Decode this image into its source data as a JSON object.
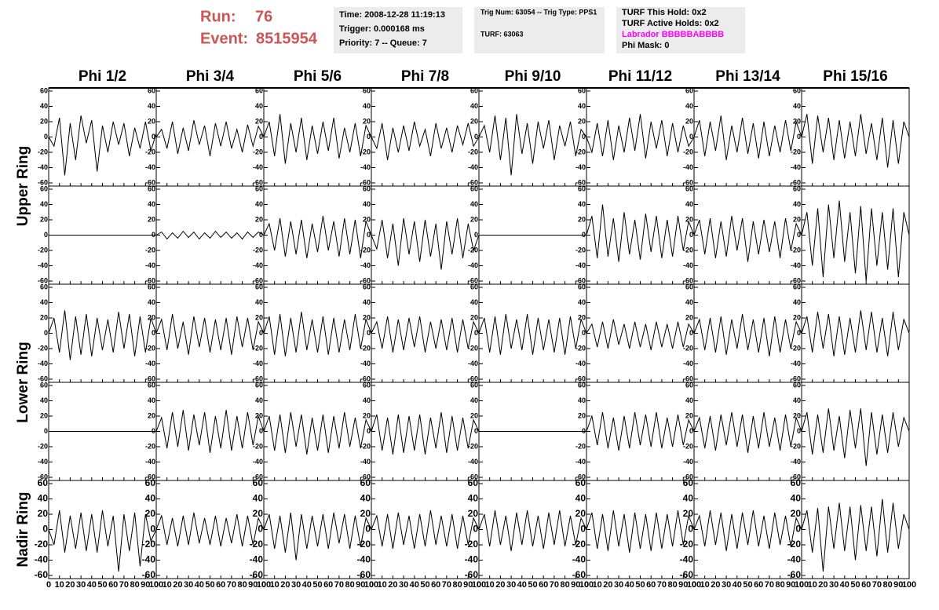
{
  "header": {
    "run_label": "Run:",
    "run": "76",
    "event_label": "Event:",
    "event": "8515954",
    "time": "Time: 2008-12-28 11:19:13",
    "trigger": "Trigger: 0.000168 ms",
    "priority": "Priority: 7 -- Queue: 7",
    "trig": "Trig Num: 63054 -- Trig Type: PPS1",
    "turf": "TURF: 63063",
    "turf_hold": "TURF This Hold: 0x2",
    "turf_active": "TURF Active Holds: 0x2",
    "labrador": "Labrador BBBBBABBBB",
    "phi_mask": "Phi Mask: 0"
  },
  "chart_data": {
    "type": "line",
    "columns": [
      "Phi 1/2",
      "Phi 3/4",
      "Phi 5/6",
      "Phi 7/8",
      "Phi 9/10",
      "Phi 11/12",
      "Phi 13/14",
      "Phi 15/16"
    ],
    "rows": [
      "Upper Ring",
      "Lower Ring",
      "Nadir Ring"
    ],
    "xlim": [
      0,
      100
    ],
    "xticks": [
      0,
      10,
      20,
      30,
      40,
      50,
      60,
      70,
      80,
      90,
      100
    ],
    "ylim": [
      -60,
      60
    ],
    "yticks": [
      60,
      40,
      20,
      0,
      -20,
      -40,
      -60
    ],
    "x": [
      0,
      5,
      10,
      15,
      20,
      25,
      30,
      35,
      40,
      45,
      50,
      55,
      60,
      65,
      70,
      75,
      80,
      85,
      90,
      95,
      100
    ],
    "color": "#000000",
    "series": [
      {
        "values": [
          0,
          -12,
          25,
          -50,
          18,
          -30,
          28,
          -8,
          22,
          -45,
          15,
          -20,
          20,
          -10,
          18,
          -25,
          12,
          -15,
          20,
          -18,
          5
        ]
      },
      {
        "values": [
          0,
          10,
          -15,
          20,
          -22,
          12,
          -18,
          22,
          -10,
          15,
          -25,
          18,
          -12,
          20,
          -15,
          10,
          -20,
          16,
          -12,
          14,
          0
        ]
      },
      {
        "values": [
          0,
          20,
          -25,
          30,
          -35,
          18,
          -20,
          25,
          -30,
          15,
          -22,
          20,
          -18,
          25,
          -28,
          12,
          -20,
          18,
          -25,
          15,
          0
        ]
      },
      {
        "values": [
          0,
          -15,
          18,
          -30,
          12,
          -20,
          15,
          -18,
          20,
          -12,
          10,
          -25,
          18,
          -15,
          12,
          -20,
          15,
          -10,
          18,
          -12,
          0
        ]
      },
      {
        "values": [
          0,
          15,
          -20,
          28,
          -30,
          25,
          -50,
          30,
          -22,
          18,
          -35,
          20,
          -15,
          22,
          -30,
          15,
          -12,
          20,
          -25,
          10,
          0
        ]
      },
      {
        "values": [
          0,
          -20,
          18,
          -25,
          22,
          -30,
          15,
          -20,
          25,
          -18,
          30,
          -28,
          20,
          -15,
          22,
          -25,
          18,
          -20,
          15,
          -12,
          0
        ]
      },
      {
        "values": [
          0,
          22,
          -25,
          20,
          -18,
          28,
          -30,
          15,
          -20,
          25,
          -22,
          18,
          -28,
          20,
          -25,
          15,
          -20,
          22,
          -18,
          20,
          0
        ]
      },
      {
        "values": [
          0,
          30,
          -35,
          28,
          -20,
          25,
          -30,
          22,
          -28,
          20,
          -25,
          30,
          -22,
          18,
          -30,
          25,
          -40,
          22,
          -35,
          20,
          0
        ]
      },
      {
        "values": [
          0,
          0,
          0,
          0,
          0,
          0,
          0,
          0,
          0,
          0,
          0,
          0,
          0,
          0,
          0,
          0,
          0,
          0,
          0,
          0,
          0
        ]
      },
      {
        "values": [
          0,
          4,
          -5,
          3,
          -4,
          5,
          -3,
          4,
          -5,
          3,
          -4,
          5,
          -3,
          4,
          -4,
          3,
          -5,
          4,
          -3,
          4,
          0
        ]
      },
      {
        "values": [
          0,
          15,
          -20,
          22,
          -28,
          18,
          -25,
          20,
          -30,
          15,
          -22,
          25,
          -20,
          18,
          -28,
          22,
          -25,
          20,
          -30,
          18,
          0
        ]
      },
      {
        "values": [
          0,
          -18,
          20,
          -30,
          15,
          -40,
          22,
          -25,
          18,
          -35,
          20,
          -28,
          15,
          -45,
          18,
          -25,
          22,
          -30,
          15,
          -20,
          0
        ]
      },
      {
        "values": [
          0,
          0,
          0,
          0,
          0,
          0,
          0,
          0,
          0,
          0,
          0,
          0,
          0,
          0,
          0,
          0,
          0,
          0,
          0,
          0,
          0
        ]
      },
      {
        "values": [
          0,
          25,
          -30,
          40,
          -28,
          22,
          -35,
          30,
          -25,
          20,
          -32,
          28,
          -22,
          25,
          -30,
          20,
          -28,
          25,
          -20,
          18,
          0
        ]
      },
      {
        "values": [
          0,
          20,
          -25,
          22,
          -30,
          18,
          -28,
          25,
          -20,
          22,
          -35,
          18,
          -25,
          20,
          -22,
          18,
          -30,
          22,
          -20,
          15,
          0
        ]
      },
      {
        "values": [
          0,
          30,
          -40,
          35,
          -55,
          40,
          -30,
          45,
          -35,
          30,
          -50,
          38,
          -60,
          35,
          -40,
          30,
          -45,
          35,
          -55,
          30,
          0
        ]
      },
      {
        "values": [
          0,
          20,
          -25,
          30,
          -35,
          22,
          -28,
          25,
          -30,
          20,
          -22,
          18,
          -25,
          28,
          -20,
          25,
          -30,
          22,
          -25,
          20,
          0
        ]
      },
      {
        "values": [
          0,
          18,
          -22,
          25,
          -20,
          15,
          -28,
          22,
          -18,
          20,
          -25,
          18,
          -22,
          20,
          -28,
          22,
          -18,
          20,
          -22,
          15,
          0
        ]
      },
      {
        "values": [
          0,
          22,
          -28,
          25,
          -30,
          20,
          -25,
          28,
          -22,
          18,
          -25,
          22,
          -28,
          20,
          -25,
          18,
          -22,
          25,
          -20,
          18,
          0
        ]
      },
      {
        "values": [
          0,
          15,
          -20,
          22,
          -25,
          18,
          -22,
          20,
          -18,
          22,
          -25,
          15,
          -20,
          18,
          -22,
          20,
          -25,
          18,
          -20,
          15,
          0
        ]
      },
      {
        "values": [
          0,
          20,
          -25,
          22,
          -28,
          25,
          -20,
          18,
          -22,
          25,
          -28,
          20,
          -22,
          18,
          -25,
          20,
          -28,
          22,
          -20,
          18,
          0
        ]
      },
      {
        "values": [
          0,
          12,
          -18,
          15,
          -20,
          18,
          -15,
          12,
          -20,
          15,
          -18,
          12,
          -22,
          15,
          -18,
          12,
          -20,
          15,
          -18,
          12,
          0
        ]
      },
      {
        "values": [
          0,
          18,
          -22,
          20,
          -25,
          22,
          -28,
          18,
          -20,
          25,
          -22,
          18,
          -25,
          20,
          -30,
          22,
          -25,
          18,
          -20,
          15,
          0
        ]
      },
      {
        "values": [
          0,
          22,
          -25,
          28,
          -20,
          25,
          -30,
          22,
          -28,
          20,
          -25,
          30,
          -22,
          28,
          -25,
          20,
          -30,
          28,
          -22,
          18,
          0
        ]
      },
      {
        "values": [
          0,
          0,
          0,
          0,
          0,
          0,
          0,
          0,
          0,
          0,
          0,
          0,
          0,
          0,
          0,
          0,
          0,
          0,
          0,
          0,
          0
        ]
      },
      {
        "values": [
          0,
          18,
          -22,
          25,
          -20,
          28,
          -25,
          22,
          -18,
          25,
          -28,
          20,
          -22,
          28,
          -25,
          20,
          -22,
          25,
          -18,
          20,
          0
        ]
      },
      {
        "values": [
          0,
          20,
          -25,
          22,
          -28,
          25,
          -20,
          22,
          -30,
          18,
          -25,
          22,
          -28,
          20,
          -22,
          25,
          -20,
          18,
          -22,
          15,
          0
        ]
      },
      {
        "values": [
          0,
          22,
          -25,
          18,
          -30,
          22,
          -28,
          20,
          -25,
          22,
          -30,
          18,
          -22,
          25,
          -28,
          20,
          -25,
          18,
          -22,
          15,
          0
        ]
      },
      {
        "values": [
          0,
          0,
          0,
          0,
          0,
          0,
          0,
          0,
          0,
          0,
          0,
          0,
          0,
          0,
          0,
          0,
          0,
          0,
          0,
          0,
          0
        ]
      },
      {
        "values": [
          0,
          20,
          -18,
          25,
          -22,
          18,
          -25,
          20,
          -22,
          25,
          -18,
          22,
          -20,
          25,
          -22,
          18,
          -20,
          22,
          -18,
          15,
          0
        ]
      },
      {
        "values": [
          0,
          18,
          -22,
          20,
          -25,
          22,
          -18,
          25,
          -20,
          22,
          -28,
          20,
          -22,
          25,
          -20,
          18,
          -25,
          22,
          -20,
          18,
          0
        ]
      },
      {
        "values": [
          0,
          25,
          -30,
          22,
          -28,
          30,
          -25,
          20,
          -35,
          28,
          -22,
          30,
          -45,
          25,
          -30,
          22,
          -28,
          25,
          -20,
          18,
          0
        ]
      },
      {
        "values": [
          0,
          -20,
          25,
          -30,
          18,
          -25,
          22,
          -28,
          20,
          -30,
          25,
          -22,
          18,
          -55,
          20,
          -28,
          22,
          -48,
          20,
          -15,
          0
        ]
      },
      {
        "values": [
          0,
          18,
          -20,
          15,
          -22,
          18,
          -20,
          22,
          -18,
          15,
          -20,
          18,
          -22,
          15,
          -18,
          20,
          -22,
          18,
          -20,
          15,
          0
        ]
      },
      {
        "values": [
          0,
          20,
          -25,
          18,
          -30,
          22,
          -40,
          20,
          -25,
          18,
          -22,
          20,
          -25,
          22,
          -18,
          20,
          -25,
          18,
          -22,
          15,
          0
        ]
      },
      {
        "values": [
          0,
          18,
          -22,
          20,
          -25,
          22,
          -20,
          18,
          -25,
          20,
          -22,
          25,
          -20,
          18,
          -22,
          20,
          -25,
          18,
          -20,
          15,
          0
        ]
      },
      {
        "values": [
          0,
          20,
          -22,
          25,
          -20,
          18,
          -28,
          22,
          -20,
          25,
          -22,
          18,
          -25,
          22,
          -20,
          25,
          -22,
          18,
          -20,
          15,
          0
        ]
      },
      {
        "values": [
          0,
          22,
          -25,
          20,
          -28,
          25,
          -22,
          20,
          -30,
          22,
          -25,
          20,
          -28,
          22,
          -25,
          20,
          -22,
          25,
          -20,
          18,
          0
        ]
      },
      {
        "values": [
          0,
          18,
          -22,
          25,
          -20,
          22,
          -28,
          20,
          -25,
          22,
          -20,
          25,
          -22,
          18,
          -25,
          22,
          -20,
          18,
          -22,
          15,
          0
        ]
      },
      {
        "values": [
          0,
          25,
          -30,
          28,
          -55,
          30,
          -25,
          35,
          -28,
          30,
          -40,
          32,
          -28,
          30,
          -35,
          40,
          -30,
          35,
          -25,
          20,
          0
        ]
      }
    ]
  }
}
